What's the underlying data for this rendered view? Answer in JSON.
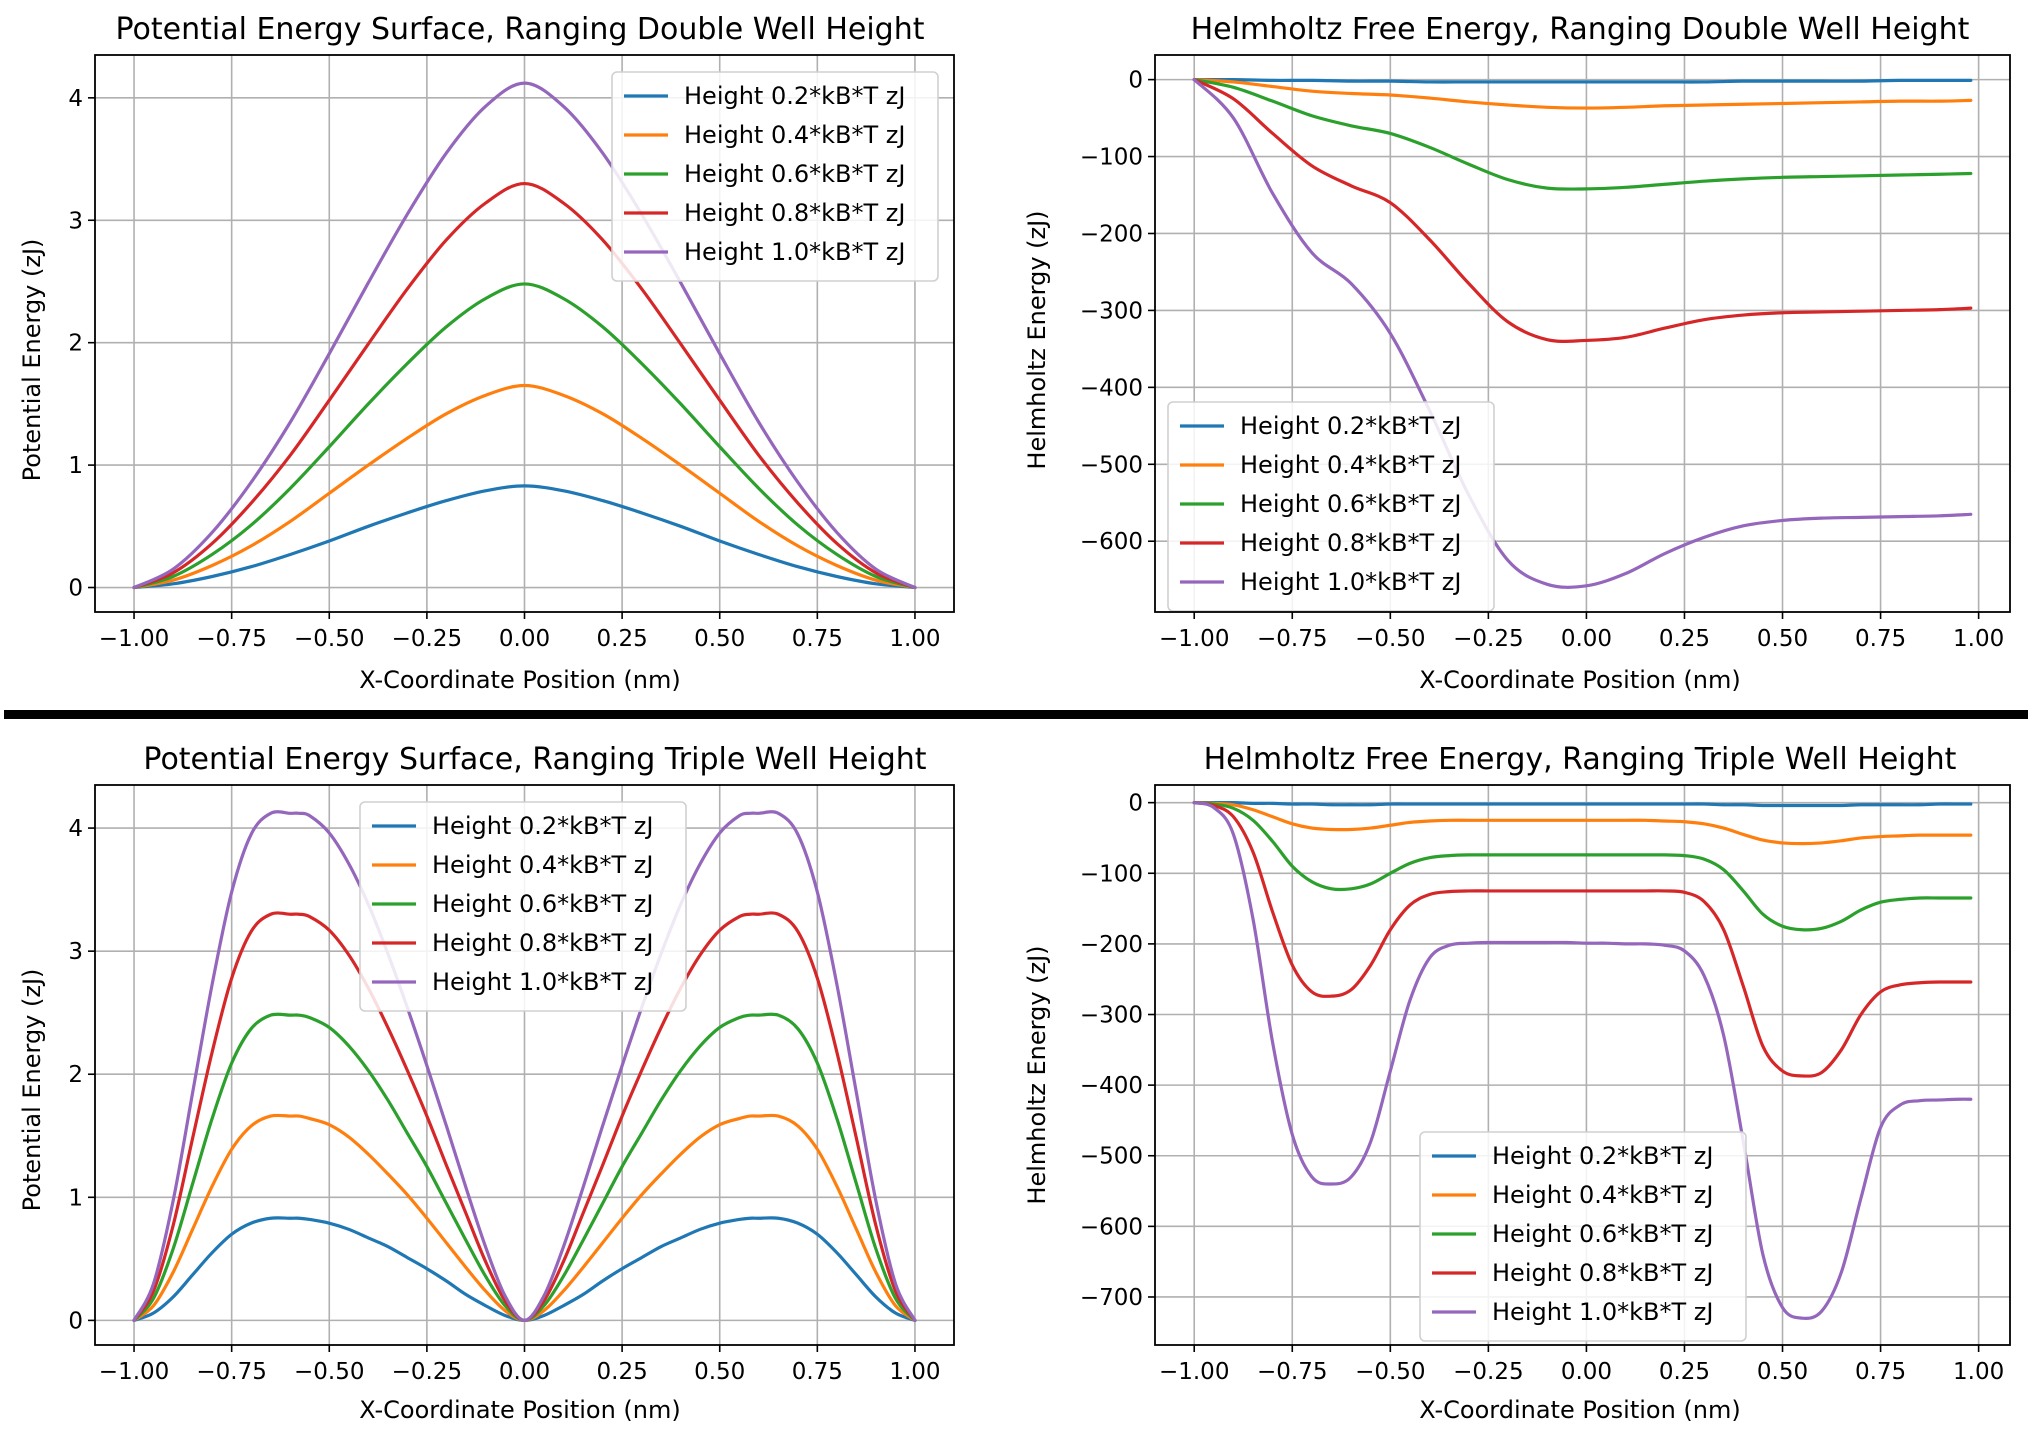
{
  "figure": {
    "separator_color": "#000000"
  },
  "colors": [
    "#1f77b4",
    "#ff7f0e",
    "#2ca02c",
    "#d62728",
    "#9467bd"
  ],
  "chart_data": [
    {
      "id": "pes-double",
      "type": "line",
      "title": "Potential Energy Surface, Ranging Double Well Height",
      "xlabel": "X-Coordinate Position (nm)",
      "ylabel": "Potential Energy (zJ)",
      "xlim": [
        -1.1,
        1.1
      ],
      "ylim": [
        -0.2,
        4.35
      ],
      "xticks": [
        -1.0,
        -0.75,
        -0.5,
        -0.25,
        0.0,
        0.25,
        0.5,
        0.75,
        1.0
      ],
      "xtick_labels": [
        "−1.00",
        "−0.75",
        "−0.50",
        "−0.25",
        "0.00",
        "0.25",
        "0.50",
        "0.75",
        "1.00"
      ],
      "yticks": [
        0,
        1,
        2,
        3,
        4
      ],
      "ytick_labels": [
        "0",
        "1",
        "2",
        "3",
        "4"
      ],
      "grid": true,
      "legend_position": "upper-right",
      "x": [
        -1.0,
        -0.9,
        -0.8,
        -0.7,
        -0.6,
        -0.5,
        -0.4,
        -0.3,
        -0.2,
        -0.1,
        0.0,
        0.1,
        0.2,
        0.3,
        0.4,
        0.5,
        0.6,
        0.7,
        0.8,
        0.9,
        1.0
      ],
      "series": [
        {
          "name": "Height 0.2*kB*T zJ",
          "values": [
            0.0,
            0.03,
            0.09,
            0.17,
            0.27,
            0.38,
            0.5,
            0.61,
            0.71,
            0.79,
            0.83,
            0.79,
            0.71,
            0.61,
            0.5,
            0.38,
            0.27,
            0.17,
            0.09,
            0.03,
            0.0
          ]
        },
        {
          "name": "Height 0.4*kB*T zJ",
          "values": [
            0.0,
            0.06,
            0.18,
            0.34,
            0.54,
            0.77,
            1.0,
            1.22,
            1.42,
            1.57,
            1.65,
            1.57,
            1.42,
            1.22,
            1.0,
            0.77,
            0.54,
            0.34,
            0.18,
            0.06,
            0.0
          ]
        },
        {
          "name": "Height 0.6*kB*T zJ",
          "values": [
            0.0,
            0.09,
            0.27,
            0.51,
            0.81,
            1.15,
            1.5,
            1.83,
            2.13,
            2.36,
            2.48,
            2.36,
            2.13,
            1.83,
            1.5,
            1.15,
            0.81,
            0.51,
            0.27,
            0.09,
            0.0
          ]
        },
        {
          "name": "Height 0.8*kB*T zJ",
          "values": [
            0.0,
            0.12,
            0.36,
            0.69,
            1.08,
            1.53,
            1.99,
            2.44,
            2.84,
            3.14,
            3.3,
            3.14,
            2.84,
            2.44,
            1.99,
            1.53,
            1.08,
            0.69,
            0.36,
            0.12,
            0.0
          ]
        },
        {
          "name": "Height 1.0*kB*T zJ",
          "values": [
            0.0,
            0.15,
            0.45,
            0.86,
            1.35,
            1.91,
            2.49,
            3.05,
            3.55,
            3.93,
            4.12,
            3.93,
            3.55,
            3.05,
            2.49,
            1.91,
            1.35,
            0.86,
            0.45,
            0.15,
            0.0
          ]
        }
      ]
    },
    {
      "id": "helm-double",
      "type": "line",
      "title": "Helmholtz Free Energy, Ranging Double Well Height",
      "xlabel": "X-Coordinate Position (nm)",
      "ylabel": "Helmholtz Energy (zJ)",
      "xlim": [
        -1.1,
        1.08
      ],
      "ylim": [
        -692,
        32
      ],
      "xticks": [
        -1.0,
        -0.75,
        -0.5,
        -0.25,
        0.0,
        0.25,
        0.5,
        0.75,
        1.0
      ],
      "xtick_labels": [
        "−1.00",
        "−0.75",
        "−0.50",
        "−0.25",
        "0.00",
        "0.25",
        "0.50",
        "0.75",
        "1.00"
      ],
      "yticks": [
        0,
        -100,
        -200,
        -300,
        -400,
        -500,
        -600
      ],
      "ytick_labels": [
        "0",
        "−100",
        "−200",
        "−300",
        "−400",
        "−500",
        "−600"
      ],
      "grid": true,
      "legend_position": "lower-left",
      "x": [
        -1.0,
        -0.9,
        -0.8,
        -0.7,
        -0.6,
        -0.5,
        -0.4,
        -0.3,
        -0.2,
        -0.1,
        0.0,
        0.1,
        0.2,
        0.3,
        0.4,
        0.5,
        0.6,
        0.7,
        0.8,
        0.9,
        0.98
      ],
      "series": [
        {
          "name": "Height 0.2*kB*T zJ",
          "values": [
            0,
            0,
            -1,
            -1,
            -2,
            -2,
            -3,
            -3,
            -3,
            -3,
            -3,
            -3,
            -3,
            -3,
            -2,
            -2,
            -2,
            -2,
            -1,
            -1,
            -1
          ]
        },
        {
          "name": "Height 0.4*kB*T zJ",
          "values": [
            0,
            -3,
            -9,
            -15,
            -18,
            -20,
            -24,
            -29,
            -33,
            -36,
            -37,
            -36,
            -34,
            -33,
            -32,
            -31,
            -30,
            -29,
            -28,
            -28,
            -27
          ]
        },
        {
          "name": "Height 0.6*kB*T zJ",
          "values": [
            0,
            -10,
            -28,
            -47,
            -60,
            -70,
            -88,
            -110,
            -130,
            -141,
            -142,
            -140,
            -136,
            -132,
            -129,
            -127,
            -126,
            -125,
            -124,
            -123,
            -122
          ]
        },
        {
          "name": "Height 0.8*kB*T zJ",
          "values": [
            0,
            -25,
            -70,
            -112,
            -138,
            -160,
            -208,
            -265,
            -315,
            -338,
            -339,
            -335,
            -323,
            -312,
            -306,
            -303,
            -302,
            -301,
            -300,
            -299,
            -297
          ]
        },
        {
          "name": "Height 1.0*kB*T zJ",
          "values": [
            0,
            -50,
            -148,
            -225,
            -265,
            -330,
            -430,
            -540,
            -625,
            -656,
            -658,
            -642,
            -616,
            -595,
            -580,
            -573,
            -570,
            -569,
            -568,
            -567,
            -565
          ]
        }
      ]
    },
    {
      "id": "pes-triple",
      "type": "line",
      "title": "Potential Energy Surface, Ranging Triple Well Height",
      "xlabel": "X-Coordinate Position (nm)",
      "ylabel": "Potential Energy (zJ)",
      "xlim": [
        -1.1,
        1.1
      ],
      "ylim": [
        -0.2,
        4.35
      ],
      "xticks": [
        -1.0,
        -0.75,
        -0.5,
        -0.25,
        0.0,
        0.25,
        0.5,
        0.75,
        1.0
      ],
      "xtick_labels": [
        "−1.00",
        "−0.75",
        "−0.50",
        "−0.25",
        "0.00",
        "0.25",
        "0.50",
        "0.75",
        "1.00"
      ],
      "yticks": [
        0,
        1,
        2,
        3,
        4
      ],
      "ytick_labels": [
        "0",
        "1",
        "2",
        "3",
        "4"
      ],
      "grid": true,
      "legend_position": "upper-center",
      "x": [
        -1.0,
        -0.95,
        -0.9,
        -0.85,
        -0.8,
        -0.75,
        -0.7,
        -0.65,
        -0.6,
        -0.577,
        -0.55,
        -0.5,
        -0.45,
        -0.4,
        -0.35,
        -0.3,
        -0.25,
        -0.2,
        -0.15,
        -0.1,
        -0.05,
        0.0,
        0.05,
        0.1,
        0.15,
        0.2,
        0.25,
        0.3,
        0.35,
        0.4,
        0.45,
        0.5,
        0.55,
        0.577,
        0.6,
        0.65,
        0.7,
        0.75,
        0.8,
        0.85,
        0.9,
        0.95,
        1.0
      ],
      "series": [
        {
          "name": "Height 0.2*kB*T zJ",
          "values": [
            0.0,
            0.06,
            0.19,
            0.37,
            0.55,
            0.7,
            0.79,
            0.83,
            0.83,
            0.83,
            0.82,
            0.79,
            0.74,
            0.67,
            0.6,
            0.51,
            0.42,
            0.32,
            0.21,
            0.12,
            0.04,
            0.0,
            0.04,
            0.12,
            0.21,
            0.32,
            0.42,
            0.51,
            0.6,
            0.67,
            0.74,
            0.79,
            0.82,
            0.83,
            0.83,
            0.83,
            0.79,
            0.7,
            0.55,
            0.37,
            0.19,
            0.06,
            0.0
          ]
        },
        {
          "name": "Height 0.4*kB*T zJ",
          "values": [
            0.0,
            0.12,
            0.39,
            0.74,
            1.09,
            1.39,
            1.58,
            1.66,
            1.66,
            1.66,
            1.64,
            1.59,
            1.49,
            1.35,
            1.19,
            1.02,
            0.83,
            0.63,
            0.43,
            0.24,
            0.08,
            0.0,
            0.08,
            0.24,
            0.43,
            0.63,
            0.83,
            1.02,
            1.19,
            1.35,
            1.49,
            1.59,
            1.64,
            1.66,
            1.66,
            1.66,
            1.58,
            1.39,
            1.09,
            0.74,
            0.39,
            0.12,
            0.0
          ]
        },
        {
          "name": "Height 0.6*kB*T zJ",
          "values": [
            0.0,
            0.18,
            0.58,
            1.11,
            1.64,
            2.09,
            2.37,
            2.48,
            2.48,
            2.48,
            2.46,
            2.38,
            2.23,
            2.03,
            1.79,
            1.52,
            1.25,
            0.95,
            0.65,
            0.36,
            0.12,
            0.0,
            0.12,
            0.36,
            0.65,
            0.95,
            1.25,
            1.52,
            1.79,
            2.03,
            2.23,
            2.38,
            2.46,
            2.48,
            2.48,
            2.48,
            2.37,
            2.09,
            1.64,
            1.11,
            0.58,
            0.18,
            0.0
          ]
        },
        {
          "name": "Height 0.8*kB*T zJ",
          "values": [
            0.0,
            0.24,
            0.77,
            1.48,
            2.18,
            2.78,
            3.16,
            3.3,
            3.3,
            3.3,
            3.28,
            3.17,
            2.97,
            2.7,
            2.38,
            2.03,
            1.66,
            1.26,
            0.87,
            0.48,
            0.16,
            0.0,
            0.16,
            0.48,
            0.87,
            1.26,
            1.66,
            2.03,
            2.38,
            2.7,
            2.97,
            3.17,
            3.28,
            3.3,
            3.3,
            3.3,
            3.16,
            2.78,
            2.18,
            1.48,
            0.77,
            0.24,
            0.0
          ]
        },
        {
          "name": "Height 1.0*kB*T zJ",
          "values": [
            0.0,
            0.3,
            0.97,
            1.85,
            2.73,
            3.48,
            3.95,
            4.12,
            4.12,
            4.12,
            4.1,
            3.96,
            3.71,
            3.38,
            2.98,
            2.54,
            2.07,
            1.58,
            1.08,
            0.6,
            0.2,
            0.0,
            0.2,
            0.6,
            1.08,
            1.58,
            2.07,
            2.54,
            2.98,
            3.38,
            3.71,
            3.96,
            4.1,
            4.12,
            4.12,
            4.12,
            3.95,
            3.48,
            2.73,
            1.85,
            0.97,
            0.3,
            0.0
          ]
        }
      ]
    },
    {
      "id": "helm-triple",
      "type": "line",
      "title": "Helmholtz Free Energy, Ranging Triple Well Height",
      "xlabel": "X-Coordinate Position (nm)",
      "ylabel": "Helmholtz Energy (zJ)",
      "xlim": [
        -1.1,
        1.08
      ],
      "ylim": [
        -768,
        25
      ],
      "xticks": [
        -1.0,
        -0.75,
        -0.5,
        -0.25,
        0.0,
        0.25,
        0.5,
        0.75,
        1.0
      ],
      "xtick_labels": [
        "−1.00",
        "−0.75",
        "−0.50",
        "−0.25",
        "0.00",
        "0.25",
        "0.50",
        "0.75",
        "1.00"
      ],
      "yticks": [
        0,
        -100,
        -200,
        -300,
        -400,
        -500,
        -600,
        -700
      ],
      "ytick_labels": [
        "0",
        "−100",
        "−200",
        "−300",
        "−400",
        "−500",
        "−600",
        "−700"
      ],
      "grid": true,
      "legend_position": "lower-center",
      "x": [
        -1.0,
        -0.95,
        -0.9,
        -0.85,
        -0.8,
        -0.75,
        -0.7,
        -0.65,
        -0.6,
        -0.55,
        -0.5,
        -0.45,
        -0.4,
        -0.35,
        -0.3,
        -0.25,
        -0.2,
        -0.15,
        -0.1,
        -0.05,
        0.0,
        0.05,
        0.1,
        0.15,
        0.2,
        0.25,
        0.3,
        0.35,
        0.4,
        0.45,
        0.5,
        0.55,
        0.6,
        0.65,
        0.7,
        0.75,
        0.8,
        0.85,
        0.9,
        0.95,
        0.98
      ],
      "series": [
        {
          "name": "Height 0.2*kB*T zJ",
          "values": [
            0,
            0,
            0,
            -1,
            -1,
            -2,
            -2,
            -3,
            -3,
            -3,
            -2,
            -2,
            -2,
            -2,
            -2,
            -2,
            -2,
            -2,
            -2,
            -2,
            -2,
            -2,
            -2,
            -2,
            -2,
            -2,
            -2,
            -3,
            -3,
            -4,
            -4,
            -4,
            -4,
            -4,
            -3,
            -3,
            -3,
            -3,
            -2,
            -2,
            -2
          ]
        },
        {
          "name": "Height 0.4*kB*T zJ",
          "values": [
            0,
            -1,
            -3,
            -10,
            -20,
            -30,
            -36,
            -38,
            -38,
            -36,
            -32,
            -28,
            -26,
            -25,
            -25,
            -25,
            -25,
            -25,
            -25,
            -25,
            -25,
            -25,
            -25,
            -25,
            -26,
            -27,
            -30,
            -36,
            -45,
            -53,
            -57,
            -58,
            -57,
            -54,
            -50,
            -48,
            -47,
            -46,
            -46,
            -46,
            -46
          ]
        },
        {
          "name": "Height 0.6*kB*T zJ",
          "values": [
            0,
            -2,
            -8,
            -25,
            -55,
            -90,
            -112,
            -122,
            -122,
            -115,
            -100,
            -86,
            -78,
            -75,
            -74,
            -74,
            -74,
            -74,
            -74,
            -74,
            -74,
            -74,
            -74,
            -74,
            -74,
            -75,
            -80,
            -95,
            -125,
            -158,
            -175,
            -180,
            -178,
            -168,
            -152,
            -141,
            -137,
            -135,
            -135,
            -135,
            -135
          ]
        },
        {
          "name": "Height 0.8*kB*T zJ",
          "values": [
            0,
            -4,
            -20,
            -70,
            -155,
            -230,
            -268,
            -274,
            -265,
            -230,
            -180,
            -145,
            -130,
            -126,
            -125,
            -125,
            -125,
            -125,
            -125,
            -125,
            -125,
            -125,
            -125,
            -125,
            -125,
            -127,
            -140,
            -180,
            -260,
            -345,
            -380,
            -387,
            -382,
            -350,
            -300,
            -268,
            -258,
            -255,
            -254,
            -254,
            -254
          ]
        },
        {
          "name": "Height 1.0*kB*T zJ",
          "values": [
            0,
            -7,
            -45,
            -165,
            -340,
            -470,
            -530,
            -540,
            -530,
            -480,
            -380,
            -280,
            -220,
            -202,
            -199,
            -198,
            -198,
            -198,
            -198,
            -198,
            -199,
            -199,
            -200,
            -200,
            -202,
            -210,
            -245,
            -330,
            -480,
            -640,
            -715,
            -730,
            -720,
            -665,
            -560,
            -460,
            -428,
            -422,
            -421,
            -420,
            -420
          ]
        }
      ]
    }
  ]
}
